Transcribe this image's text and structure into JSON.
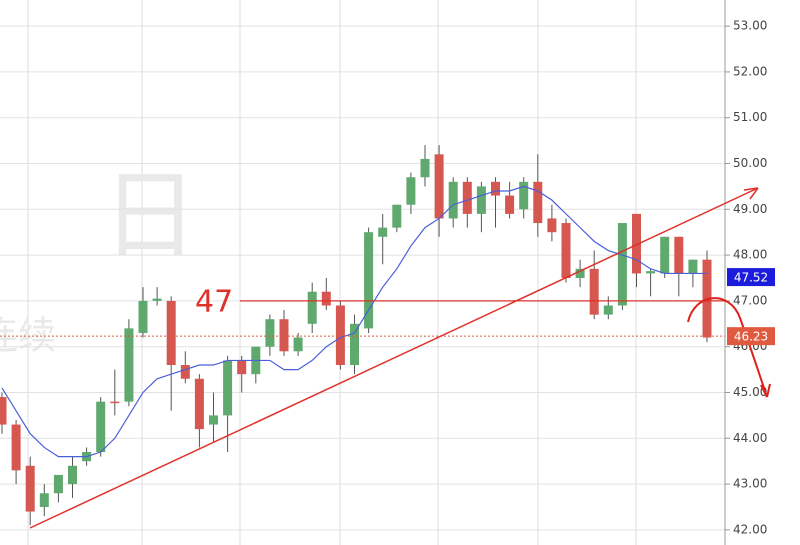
{
  "chart_data": {
    "type": "candlestick",
    "ylim": [
      41.67,
      53.57
    ],
    "yticks": [
      {
        "value": 42,
        "label": "42.00"
      },
      {
        "value": 43,
        "label": "43.00"
      },
      {
        "value": 44,
        "label": "44.00"
      },
      {
        "value": 45,
        "label": "45.00"
      },
      {
        "value": 46,
        "label": "46.00"
      },
      {
        "value": 47,
        "label": "47.00"
      },
      {
        "value": 48,
        "label": "48.00"
      },
      {
        "value": 49,
        "label": "49.00"
      },
      {
        "value": 50,
        "label": "50.00"
      },
      {
        "value": 51,
        "label": "51.00"
      },
      {
        "value": 52,
        "label": "52.00"
      },
      {
        "value": 53,
        "label": "53.00"
      }
    ],
    "grid": true,
    "up_color": "#5fa86e",
    "down_color": "#d5574f",
    "open": [
      44.9,
      44.3,
      43.4,
      42.5,
      42.8,
      43.0,
      43.5,
      43.7,
      44.8,
      44.8,
      46.3,
      47.0,
      47.0,
      45.6,
      45.3,
      44.3,
      44.5,
      45.7,
      45.4,
      46.0,
      46.6,
      45.9,
      46.5,
      47.2,
      46.9,
      45.6,
      46.4,
      48.4,
      48.6,
      49.1,
      49.7,
      50.2,
      48.8,
      49.6,
      48.9,
      49.6,
      49.3,
      49.0,
      49.6,
      48.8,
      48.7,
      47.5,
      47.7,
      46.7,
      46.9,
      48.9,
      47.6,
      47.6,
      48.4,
      47.6,
      47.9
    ],
    "high": [
      45.0,
      44.4,
      43.6,
      43.0,
      43.2,
      43.6,
      43.8,
      44.9,
      45.5,
      46.6,
      47.3,
      47.3,
      47.1,
      45.9,
      45.4,
      45.0,
      45.8,
      45.8,
      46.0,
      46.7,
      46.8,
      46.3,
      47.4,
      47.5,
      47.0,
      46.7,
      48.6,
      48.9,
      49.1,
      49.8,
      50.4,
      50.4,
      49.7,
      49.7,
      49.6,
      49.7,
      49.6,
      49.7,
      50.2,
      49.1,
      48.8,
      47.9,
      48.1,
      47.1,
      48.7,
      48.9,
      47.7,
      48.4,
      48.4,
      47.9,
      48.1
    ],
    "low": [
      44.1,
      43.0,
      42.1,
      42.3,
      42.6,
      42.7,
      43.4,
      43.6,
      44.5,
      44.7,
      46.2,
      46.9,
      44.6,
      45.2,
      43.8,
      43.9,
      43.7,
      45.0,
      45.2,
      45.8,
      45.8,
      45.8,
      46.3,
      46.8,
      45.5,
      45.4,
      46.3,
      47.8,
      48.5,
      48.9,
      49.5,
      48.4,
      48.6,
      48.6,
      48.5,
      48.6,
      48.8,
      48.8,
      48.4,
      48.3,
      47.4,
      47.3,
      46.6,
      46.6,
      46.8,
      47.3,
      47.1,
      47.5,
      47.1,
      47.3,
      46.1
    ],
    "close": [
      44.3,
      43.3,
      42.4,
      42.8,
      43.2,
      43.4,
      43.7,
      44.8,
      44.78,
      46.4,
      47.0,
      47.05,
      45.6,
      45.3,
      44.2,
      44.5,
      45.7,
      45.4,
      46.0,
      46.6,
      45.9,
      46.2,
      47.2,
      46.9,
      45.6,
      46.5,
      48.5,
      48.6,
      49.1,
      49.7,
      50.1,
      48.8,
      49.6,
      48.9,
      49.5,
      49.3,
      48.9,
      49.6,
      48.7,
      48.5,
      47.5,
      47.7,
      46.7,
      46.9,
      48.7,
      47.6,
      47.65,
      48.4,
      47.6,
      47.9,
      46.2
    ],
    "ma": {
      "color": "#4a5fd8",
      "values": [
        45.1,
        44.6,
        44.1,
        43.8,
        43.6,
        43.6,
        43.6,
        43.7,
        44.0,
        44.5,
        45.0,
        45.3,
        45.4,
        45.5,
        45.6,
        45.6,
        45.7,
        45.7,
        45.7,
        45.7,
        45.5,
        45.5,
        45.7,
        46.0,
        46.2,
        46.3,
        46.8,
        47.3,
        47.7,
        48.2,
        48.6,
        48.8,
        49.1,
        49.2,
        49.3,
        49.4,
        49.4,
        49.5,
        49.4,
        49.2,
        48.9,
        48.6,
        48.3,
        48.1,
        48.0,
        47.9,
        47.7,
        47.6,
        47.6,
        47.6,
        47.6
      ]
    },
    "level": {
      "label": "47",
      "value": 47,
      "color": "#e0302a"
    },
    "price_tags": [
      {
        "value": 47.52,
        "color": "#1c1cdc"
      },
      {
        "value": 46.23,
        "color": "#e05a40"
      }
    ],
    "watermark": [
      "日",
      "连续"
    ]
  }
}
